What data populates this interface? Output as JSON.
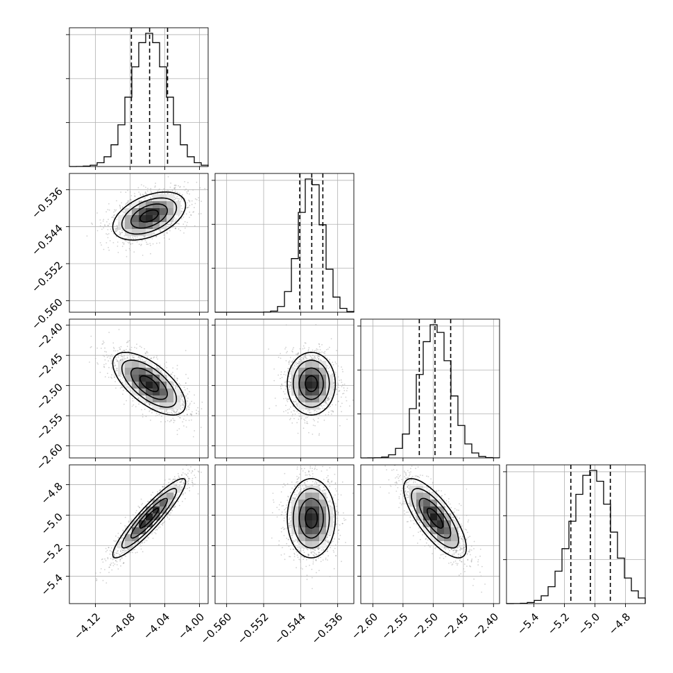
{
  "chart_data": {
    "type": "corner",
    "parameters": [
      {
        "range": [
          -4.15,
          -3.99
        ],
        "ticks": [
          -4.12,
          -4.08,
          -4.04,
          -4.0
        ],
        "tick_labels": [
          "−4.12",
          "−4.08",
          "−4.04",
          "−4.00"
        ],
        "quantiles": [
          -4.0785,
          -4.0575,
          -4.0368
        ],
        "peak": -4.058,
        "sigma": 0.021
      },
      {
        "range": [
          -0.5625,
          -0.5325
        ],
        "ticks": [
          -0.56,
          -0.552,
          -0.544,
          -0.536
        ],
        "tick_labels": [
          "−0.560",
          "−0.552",
          "−0.544",
          "−0.536"
        ],
        "quantiles": [
          -0.5442,
          -0.5416,
          -0.5392
        ],
        "peak": -0.5417,
        "sigma": 0.0026
      },
      {
        "range": [
          -2.62,
          -2.39
        ],
        "ticks": [
          -2.6,
          -2.55,
          -2.5,
          -2.45,
          -2.4
        ],
        "tick_labels": [
          "−2.60",
          "−2.55",
          "−2.50",
          "−2.45",
          "−2.40"
        ],
        "quantiles": [
          -2.523,
          -2.497,
          -2.471
        ],
        "peak": -2.497,
        "sigma": 0.026
      },
      {
        "range": [
          -5.58,
          -4.67
        ],
        "ticks": [
          -5.4,
          -5.2,
          -5.0,
          -4.8
        ],
        "tick_labels": [
          "−5.4",
          "−5.2",
          "−5.0",
          "−4.8"
        ],
        "quantiles": [
          -5.158,
          -5.03,
          -4.899
        ],
        "peak": -5.02,
        "sigma": 0.13
      }
    ],
    "correlations": {
      "1-0": 0.45,
      "2-0": -0.65,
      "2-1": 0.0,
      "3-0": 0.92,
      "3-1": 0.0,
      "3-2": -0.75
    },
    "hist_bins": 20,
    "contour_levels": [
      0.5,
      1.0,
      1.5,
      2.0
    ],
    "grid": true
  }
}
